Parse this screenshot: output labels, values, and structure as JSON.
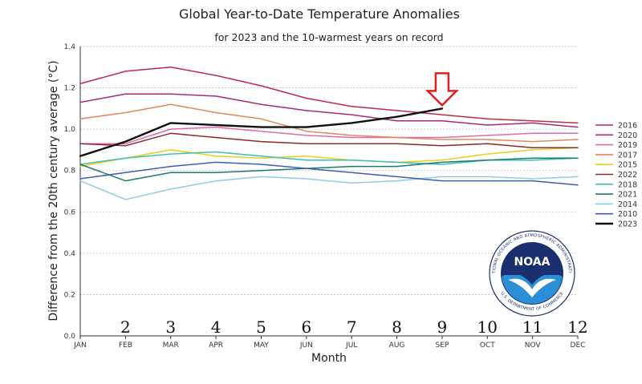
{
  "chart_data": {
    "type": "line",
    "title": "Global Year-to-Date Temperature Anomalies",
    "subtitle": "for 2023 and the 10-warmest years on record",
    "xlabel": "Month",
    "ylabel": "Difference from the 20th century average (°C)",
    "categories": [
      "JAN",
      "FEB",
      "MAR",
      "APR",
      "MAY",
      "JUN",
      "JUL",
      "AUG",
      "SEP",
      "OCT",
      "NOV",
      "DEC"
    ],
    "month_numbers": [
      "2",
      "3",
      "4",
      "5",
      "6",
      "7",
      "8",
      "9",
      "10",
      "11",
      "12"
    ],
    "ylim": [
      0,
      1.4
    ],
    "yticks": [
      "0.0",
      "0.2",
      "0.4",
      "0.6",
      "0.8",
      "1.0",
      "1.2",
      "1.4"
    ],
    "grid": true,
    "legend_position": "right",
    "series": [
      {
        "name": "2016",
        "color": "#c0294a",
        "values": [
          1.22,
          1.28,
          1.3,
          1.26,
          1.21,
          1.15,
          1.11,
          1.09,
          1.07,
          1.05,
          1.04,
          1.03
        ]
      },
      {
        "name": "2020",
        "color": "#a8297a",
        "values": [
          1.13,
          1.17,
          1.17,
          1.16,
          1.12,
          1.09,
          1.07,
          1.04,
          1.04,
          1.02,
          1.03,
          1.01
        ]
      },
      {
        "name": "2019",
        "color": "#de6aa8",
        "values": [
          0.93,
          0.93,
          1.0,
          1.01,
          0.99,
          0.97,
          0.96,
          0.96,
          0.96,
          0.97,
          0.98,
          0.98
        ]
      },
      {
        "name": "2017",
        "color": "#e0875a",
        "values": [
          1.05,
          1.08,
          1.12,
          1.08,
          1.05,
          0.99,
          0.97,
          0.96,
          0.95,
          0.95,
          0.94,
          0.95
        ]
      },
      {
        "name": "2015",
        "color": "#e8cf1e",
        "values": [
          0.82,
          0.86,
          0.9,
          0.87,
          0.86,
          0.87,
          0.85,
          0.84,
          0.85,
          0.88,
          0.9,
          0.91
        ]
      },
      {
        "name": "2022",
        "color": "#8b2a2a",
        "values": [
          0.93,
          0.92,
          0.98,
          0.96,
          0.94,
          0.93,
          0.93,
          0.93,
          0.92,
          0.93,
          0.91,
          0.91
        ]
      },
      {
        "name": "2018",
        "color": "#3cc0b0",
        "values": [
          0.83,
          0.86,
          0.88,
          0.89,
          0.87,
          0.85,
          0.85,
          0.84,
          0.83,
          0.85,
          0.85,
          0.86
        ]
      },
      {
        "name": "2021",
        "color": "#1e7a70",
        "values": [
          0.83,
          0.75,
          0.79,
          0.79,
          0.8,
          0.81,
          0.82,
          0.82,
          0.84,
          0.85,
          0.86,
          0.86
        ]
      },
      {
        "name": "2014",
        "color": "#8ecbe6",
        "values": [
          0.75,
          0.66,
          0.71,
          0.75,
          0.77,
          0.76,
          0.74,
          0.75,
          0.77,
          0.77,
          0.76,
          0.77
        ]
      },
      {
        "name": "2010",
        "color": "#3d5fae",
        "values": [
          0.76,
          0.79,
          0.82,
          0.84,
          0.83,
          0.81,
          0.79,
          0.77,
          0.75,
          0.75,
          0.75,
          0.73
        ]
      },
      {
        "name": "2023",
        "color": "#111111",
        "values": [
          0.87,
          0.94,
          1.03,
          1.02,
          1.01,
          1.01,
          1.03,
          1.06,
          1.1,
          null,
          null,
          null
        ]
      }
    ],
    "annotations": [
      {
        "type": "arrow",
        "color": "#e02020",
        "points_to": {
          "x": "SEP",
          "y": 1.1
        }
      }
    ]
  },
  "logo": {
    "name": "noaa-logo",
    "center_text": "NOAA",
    "ring_top": "NATIONAL OCEANIC AND ATMOSPHERIC ADMINISTRATION",
    "ring_bottom": "U.S. DEPARTMENT OF COMMERCE"
  }
}
